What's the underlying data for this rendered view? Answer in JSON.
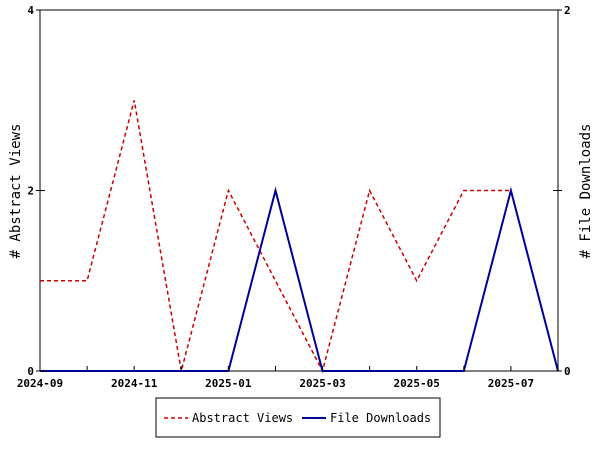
{
  "chart_data": {
    "type": "line",
    "x_ticks": [
      "2024-09",
      "2024-11",
      "2025-01",
      "2025-03",
      "2025-05",
      "2025-07"
    ],
    "x": [
      "2024-09",
      "2024-10",
      "2024-11",
      "2024-12",
      "2025-01",
      "2025-02",
      "2025-03",
      "2025-04",
      "2025-05",
      "2025-06",
      "2025-07",
      "2025-08"
    ],
    "xlim": [
      "2024-09",
      "2025-08"
    ],
    "y_left": {
      "label": "# Abstract Views",
      "ylim": [
        0,
        4
      ],
      "ticks": [
        "0",
        "2",
        "4"
      ]
    },
    "y_right": {
      "label": "# File Downloads",
      "ylim": [
        0,
        2
      ],
      "ticks": [
        "0",
        "1",
        "2"
      ]
    },
    "series": [
      {
        "name": "Abstract Views",
        "axis": "left",
        "color": "#cc0000",
        "style": "dashed",
        "values": [
          1,
          1,
          3,
          0,
          2,
          1,
          0,
          2,
          1,
          2,
          2,
          0
        ]
      },
      {
        "name": "File Downloads",
        "axis": "right",
        "color": "#000099",
        "style": "solid",
        "values": [
          0,
          0,
          0,
          0,
          0,
          1,
          0,
          0,
          0,
          0,
          1,
          0
        ]
      }
    ],
    "grid": false,
    "legend_position": "bottom-center"
  }
}
